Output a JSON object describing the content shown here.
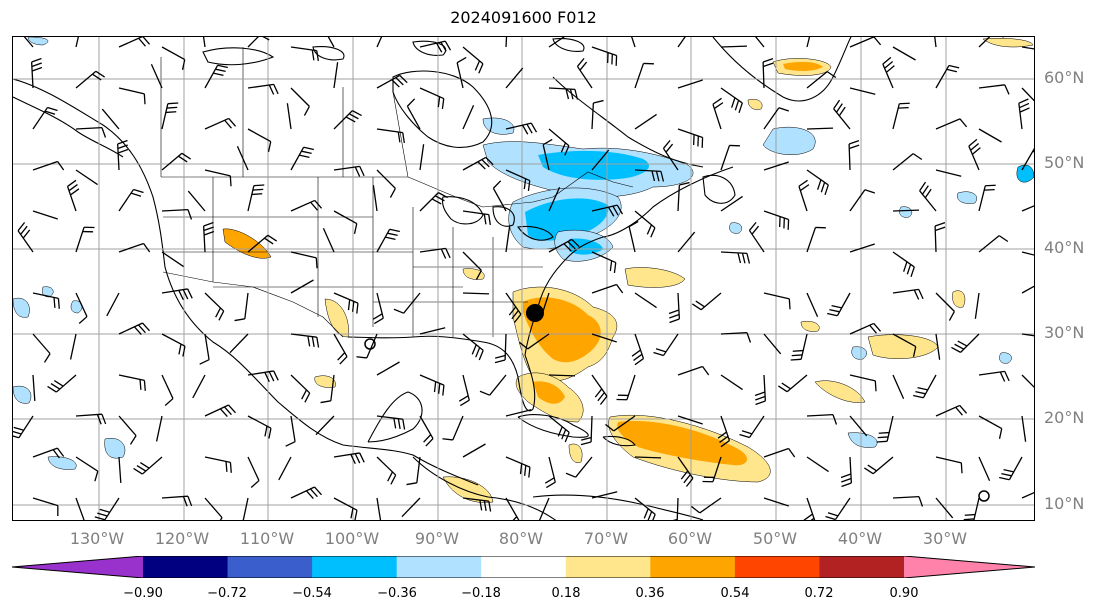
{
  "title": "2024091600 F012",
  "map": {
    "lat_labels": [
      "60°N",
      "50°N",
      "40°N",
      "30°N",
      "20°N",
      "10°N"
    ],
    "lon_labels": [
      "130°W",
      "120°W",
      "110°W",
      "100°W",
      "90°W",
      "80°W",
      "70°W",
      "60°W",
      "50°W",
      "40°W",
      "30°W"
    ],
    "gridline_color": "#a0a0a0",
    "storm_marker": "filled-black-circle"
  },
  "colorbar": {
    "ticks": [
      "−0.90",
      "−0.72",
      "−0.54",
      "−0.36",
      "−0.18",
      "0.18",
      "0.36",
      "0.54",
      "0.72",
      "0.90"
    ],
    "colors": [
      "#9932cc",
      "#000080",
      "#3a5fcd",
      "#00bfff",
      "#b0e2ff",
      "#ffffff",
      "#ffe68c",
      "#ffa500",
      "#ff4500",
      "#b22222",
      "#ff82ab"
    ],
    "extend": "both"
  }
}
